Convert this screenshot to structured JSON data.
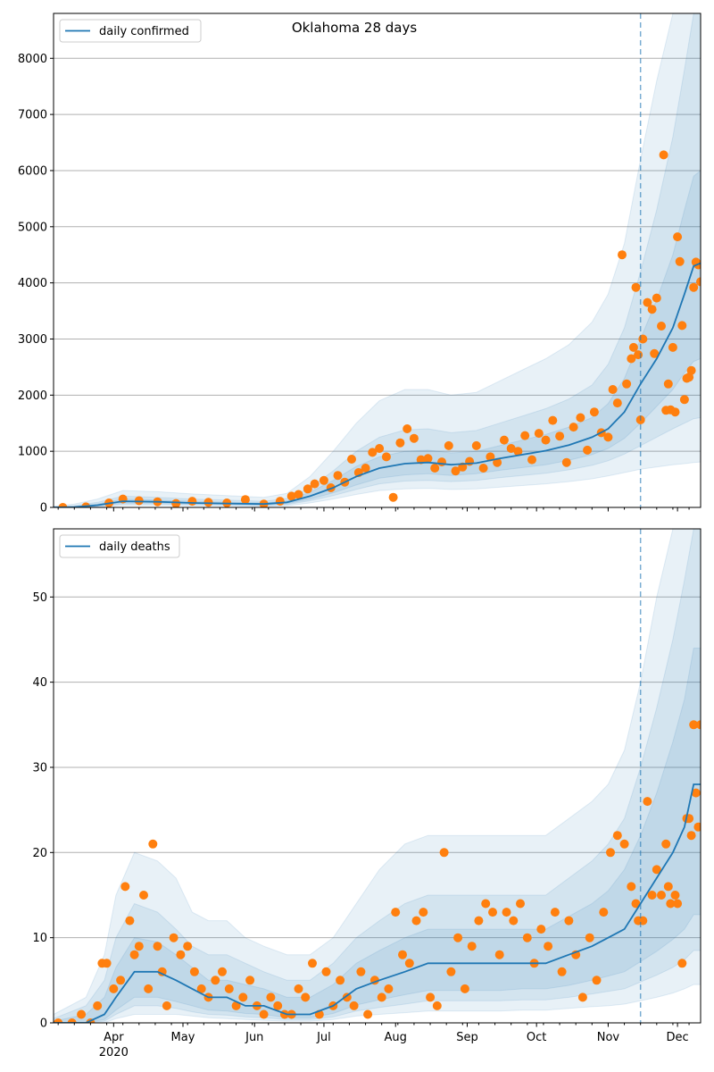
{
  "title": "Oklahoma 28 days",
  "colors": {
    "line": "#1f77b4",
    "points": "#ff7f0e",
    "band": "#1f77b4",
    "grid": "#b0b0b0"
  },
  "x_domain": [
    "2020-03-06",
    "2020-12-11"
  ],
  "forecast_start": "2020-11-15",
  "month_ticks": [
    {
      "date": "2020-04-01",
      "label": "Apr",
      "sublabel": "2020"
    },
    {
      "date": "2020-05-01",
      "label": "May",
      "sublabel": ""
    },
    {
      "date": "2020-06-01",
      "label": "Jun",
      "sublabel": ""
    },
    {
      "date": "2020-07-01",
      "label": "Jul",
      "sublabel": ""
    },
    {
      "date": "2020-08-01",
      "label": "Aug",
      "sublabel": ""
    },
    {
      "date": "2020-09-01",
      "label": "Sep",
      "sublabel": ""
    },
    {
      "date": "2020-10-01",
      "label": "Oct",
      "sublabel": ""
    },
    {
      "date": "2020-11-01",
      "label": "Nov",
      "sublabel": ""
    },
    {
      "date": "2020-12-01",
      "label": "Dec",
      "sublabel": ""
    }
  ],
  "chart_data": [
    {
      "type": "line",
      "legend": "daily confirmed",
      "legend_position": "top-left",
      "grid": "y",
      "ylim": [
        0,
        8800
      ],
      "yticks": [
        0,
        1000,
        2000,
        3000,
        4000,
        5000,
        6000,
        7000,
        8000
      ],
      "model": {
        "x": [
          "2020-03-06",
          "2020-03-15",
          "2020-03-25",
          "2020-04-05",
          "2020-04-20",
          "2020-05-05",
          "2020-05-20",
          "2020-06-05",
          "2020-06-15",
          "2020-06-25",
          "2020-07-05",
          "2020-07-15",
          "2020-07-25",
          "2020-08-05",
          "2020-08-15",
          "2020-08-25",
          "2020-09-05",
          "2020-09-15",
          "2020-09-25",
          "2020-10-05",
          "2020-10-15",
          "2020-10-25",
          "2020-11-01",
          "2020-11-08",
          "2020-11-15",
          "2020-11-22",
          "2020-11-29",
          "2020-12-04",
          "2020-12-08",
          "2020-12-11"
        ],
        "y": [
          0,
          5,
          40,
          110,
          100,
          80,
          70,
          60,
          90,
          200,
          350,
          550,
          700,
          780,
          800,
          760,
          790,
          870,
          940,
          1010,
          1110,
          1250,
          1400,
          1700,
          2200,
          2650,
          3200,
          3800,
          4300,
          4350
        ]
      },
      "bands": [
        {
          "lower": [
            0,
            0,
            10,
            40,
            40,
            30,
            30,
            20,
            30,
            80,
            150,
            230,
            300,
            330,
            340,
            320,
            330,
            360,
            390,
            420,
            460,
            510,
            560,
            620,
            680,
            720,
            760,
            780,
            800,
            810
          ],
          "upper": [
            20,
            60,
            150,
            300,
            280,
            240,
            210,
            180,
            250,
            550,
            1000,
            1500,
            1900,
            2100,
            2100,
            2000,
            2050,
            2250,
            2450,
            2650,
            2900,
            3300,
            3800,
            4700,
            6200,
            7600,
            8800,
            8800,
            8800,
            8800
          ]
        },
        {
          "lower": [
            0,
            0,
            20,
            60,
            60,
            50,
            45,
            35,
            50,
            120,
            210,
            320,
            420,
            470,
            480,
            460,
            480,
            530,
            570,
            610,
            670,
            750,
            830,
            950,
            1100,
            1250,
            1400,
            1500,
            1580,
            1600
          ],
          "upper": [
            10,
            30,
            90,
            200,
            180,
            150,
            130,
            110,
            160,
            350,
            650,
            1000,
            1250,
            1380,
            1400,
            1330,
            1370,
            1500,
            1630,
            1760,
            1930,
            2180,
            2550,
            3200,
            4200,
            5300,
            6600,
            7800,
            8800,
            8800
          ]
        },
        {
          "lower": [
            0,
            2,
            30,
            80,
            75,
            60,
            55,
            45,
            65,
            150,
            260,
            400,
            520,
            580,
            600,
            570,
            600,
            660,
            710,
            760,
            840,
            940,
            1050,
            1230,
            1500,
            1800,
            2100,
            2400,
            2600,
            2650
          ],
          "upper": [
            8,
            15,
            60,
            150,
            130,
            110,
            95,
            80,
            120,
            270,
            480,
            730,
            900,
            1000,
            1020,
            970,
            1000,
            1100,
            1200,
            1300,
            1430,
            1600,
            1850,
            2300,
            3000,
            3700,
            4500,
            5300,
            5900,
            6000
          ]
        }
      ],
      "observed": {
        "x": [
          "2020-03-10",
          "2020-03-20",
          "2020-03-30",
          "2020-04-05",
          "2020-04-12",
          "2020-04-20",
          "2020-04-28",
          "2020-05-05",
          "2020-05-12",
          "2020-05-20",
          "2020-05-28",
          "2020-06-05",
          "2020-06-12",
          "2020-06-17",
          "2020-06-20",
          "2020-06-24",
          "2020-06-27",
          "2020-07-01",
          "2020-07-04",
          "2020-07-07",
          "2020-07-10",
          "2020-07-13",
          "2020-07-16",
          "2020-07-19",
          "2020-07-22",
          "2020-07-25",
          "2020-07-28",
          "2020-07-31",
          "2020-08-03",
          "2020-08-06",
          "2020-08-09",
          "2020-08-12",
          "2020-08-15",
          "2020-08-18",
          "2020-08-21",
          "2020-08-24",
          "2020-08-27",
          "2020-08-30",
          "2020-09-02",
          "2020-09-05",
          "2020-09-08",
          "2020-09-11",
          "2020-09-14",
          "2020-09-17",
          "2020-09-20",
          "2020-09-23",
          "2020-09-26",
          "2020-09-29",
          "2020-10-02",
          "2020-10-05",
          "2020-10-08",
          "2020-10-11",
          "2020-10-14",
          "2020-10-17",
          "2020-10-20",
          "2020-10-23",
          "2020-10-26",
          "2020-10-29",
          "2020-11-01",
          "2020-11-03",
          "2020-11-05",
          "2020-11-07",
          "2020-11-09",
          "2020-11-11",
          "2020-11-12",
          "2020-11-13",
          "2020-11-14",
          "2020-11-15",
          "2020-11-16",
          "2020-11-18",
          "2020-11-20",
          "2020-11-21",
          "2020-11-22",
          "2020-11-24",
          "2020-11-25",
          "2020-11-26",
          "2020-11-27",
          "2020-11-28",
          "2020-11-29",
          "2020-11-30",
          "2020-12-01",
          "2020-12-02",
          "2020-12-03",
          "2020-12-04",
          "2020-12-05",
          "2020-12-06",
          "2020-12-07",
          "2020-12-08",
          "2020-12-09",
          "2020-12-10",
          "2020-12-11"
        ],
        "y": [
          0,
          10,
          80,
          150,
          120,
          100,
          70,
          110,
          90,
          80,
          140,
          60,
          110,
          200,
          230,
          330,
          420,
          480,
          350,
          570,
          450,
          860,
          620,
          700,
          980,
          1050,
          900,
          180,
          1150,
          1400,
          1230,
          850,
          870,
          700,
          810,
          1100,
          650,
          720,
          820,
          1100,
          700,
          900,
          800,
          1200,
          1050,
          1000,
          1280,
          850,
          1320,
          1200,
          1550,
          1270,
          800,
          1430,
          1600,
          1020,
          1700,
          1330,
          1250,
          2100,
          1860,
          4500,
          2200,
          2650,
          2850,
          3920,
          2720,
          1560,
          3000,
          3650,
          3530,
          2740,
          3730,
          3230,
          6280,
          1730,
          2200,
          1740,
          2850,
          1700,
          4820,
          4380,
          3240,
          1920,
          2300,
          2320,
          2440,
          3920,
          4370,
          4320,
          4020
        ]
      }
    },
    {
      "type": "line",
      "legend": "daily deaths",
      "legend_position": "top-left",
      "grid": "y",
      "ylim": [
        0,
        58
      ],
      "yticks": [
        0,
        10,
        20,
        30,
        40,
        50
      ],
      "model": {
        "x": [
          "2020-03-06",
          "2020-03-20",
          "2020-03-28",
          "2020-04-02",
          "2020-04-10",
          "2020-04-20",
          "2020-04-28",
          "2020-05-05",
          "2020-05-12",
          "2020-05-20",
          "2020-05-28",
          "2020-06-05",
          "2020-06-15",
          "2020-06-25",
          "2020-07-05",
          "2020-07-15",
          "2020-07-25",
          "2020-08-05",
          "2020-08-15",
          "2020-08-25",
          "2020-09-05",
          "2020-09-15",
          "2020-09-25",
          "2020-10-05",
          "2020-10-15",
          "2020-10-25",
          "2020-11-01",
          "2020-11-08",
          "2020-11-15",
          "2020-11-22",
          "2020-11-29",
          "2020-12-04",
          "2020-12-08",
          "2020-12-11"
        ],
        "y": [
          0,
          0,
          1,
          3,
          6,
          6,
          5,
          4,
          3,
          3,
          2,
          2,
          1,
          1,
          2,
          4,
          5,
          6,
          7,
          7,
          7,
          7,
          7,
          7,
          8,
          9,
          10,
          11,
          14,
          17,
          20,
          23,
          28,
          28
        ]
      },
      "bands": [
        {
          "lower": [
            0,
            0,
            0,
            0.5,
            1,
            1,
            1,
            0.8,
            0.6,
            0.5,
            0.4,
            0.3,
            0.2,
            0.2,
            0.4,
            0.8,
            1,
            1.2,
            1.4,
            1.4,
            1.4,
            1.4,
            1.5,
            1.5,
            1.7,
            1.9,
            2,
            2.2,
            2.6,
            3,
            3.5,
            4,
            4.5,
            4.5
          ],
          "upper": [
            1,
            3,
            8,
            15,
            20,
            19,
            17,
            13,
            12,
            12,
            10,
            9,
            8,
            8,
            10,
            14,
            18,
            21,
            22,
            22,
            22,
            22,
            22,
            22,
            24,
            26,
            28,
            32,
            40,
            50,
            58,
            58,
            58,
            58
          ]
        },
        {
          "lower": [
            0,
            0,
            0.2,
            1,
            2,
            2,
            1.7,
            1.3,
            1,
            0.9,
            0.7,
            0.6,
            0.4,
            0.4,
            0.7,
            1.4,
            1.8,
            2.2,
            2.6,
            2.6,
            2.6,
            2.6,
            2.7,
            2.7,
            3,
            3.4,
            3.7,
            4,
            4.8,
            5.6,
            6.5,
            7.4,
            8.5,
            8.5
          ],
          "upper": [
            0.5,
            2,
            5,
            10,
            14,
            13,
            11,
            9,
            8,
            8,
            7,
            6,
            5,
            5,
            7,
            10,
            12,
            14,
            15,
            15,
            15,
            15,
            15,
            15,
            17,
            19,
            21,
            24,
            30,
            37,
            45,
            52,
            58,
            58
          ]
        },
        {
          "lower": [
            0,
            0,
            0.4,
            1.5,
            3,
            3,
            2.5,
            2,
            1.5,
            1.4,
            1.1,
            1,
            0.6,
            0.6,
            1.1,
            2.1,
            2.7,
            3.3,
            3.8,
            3.8,
            3.8,
            3.8,
            4,
            4,
            4.4,
            5,
            5.5,
            6,
            7.2,
            8.4,
            9.8,
            11,
            12.7,
            12.7
          ],
          "upper": [
            0.2,
            1,
            3,
            6.5,
            10,
            9.5,
            8,
            6.5,
            5,
            5,
            4.5,
            4,
            3,
            3,
            4.5,
            7,
            8.5,
            10,
            11,
            11,
            11,
            11,
            11,
            11,
            12.5,
            14,
            15.5,
            18,
            22,
            27,
            33,
            38,
            44,
            44
          ]
        }
      ],
      "observed": {
        "x": [
          "2020-03-08",
          "2020-03-14",
          "2020-03-18",
          "2020-03-22",
          "2020-03-25",
          "2020-03-27",
          "2020-03-29",
          "2020-04-01",
          "2020-04-04",
          "2020-04-06",
          "2020-04-08",
          "2020-04-10",
          "2020-04-12",
          "2020-04-14",
          "2020-04-16",
          "2020-04-18",
          "2020-04-20",
          "2020-04-22",
          "2020-04-24",
          "2020-04-27",
          "2020-04-30",
          "2020-05-03",
          "2020-05-06",
          "2020-05-09",
          "2020-05-12",
          "2020-05-15",
          "2020-05-18",
          "2020-05-21",
          "2020-05-24",
          "2020-05-27",
          "2020-05-30",
          "2020-06-02",
          "2020-06-05",
          "2020-06-08",
          "2020-06-11",
          "2020-06-14",
          "2020-06-17",
          "2020-06-20",
          "2020-06-23",
          "2020-06-26",
          "2020-06-29",
          "2020-07-02",
          "2020-07-05",
          "2020-07-08",
          "2020-07-11",
          "2020-07-14",
          "2020-07-17",
          "2020-07-20",
          "2020-07-23",
          "2020-07-26",
          "2020-07-29",
          "2020-08-01",
          "2020-08-04",
          "2020-08-07",
          "2020-08-10",
          "2020-08-13",
          "2020-08-16",
          "2020-08-19",
          "2020-08-22",
          "2020-08-25",
          "2020-08-28",
          "2020-08-31",
          "2020-09-03",
          "2020-09-06",
          "2020-09-09",
          "2020-09-12",
          "2020-09-15",
          "2020-09-18",
          "2020-09-21",
          "2020-09-24",
          "2020-09-27",
          "2020-09-30",
          "2020-10-03",
          "2020-10-06",
          "2020-10-09",
          "2020-10-12",
          "2020-10-15",
          "2020-10-18",
          "2020-10-21",
          "2020-10-24",
          "2020-10-27",
          "2020-10-30",
          "2020-11-02",
          "2020-11-05",
          "2020-11-08",
          "2020-11-11",
          "2020-11-13",
          "2020-11-14",
          "2020-11-16",
          "2020-11-18",
          "2020-11-20",
          "2020-11-22",
          "2020-11-24",
          "2020-11-26",
          "2020-11-27",
          "2020-11-28",
          "2020-11-30",
          "2020-12-01",
          "2020-12-03",
          "2020-12-05",
          "2020-12-06",
          "2020-12-07",
          "2020-12-08",
          "2020-12-09",
          "2020-12-10",
          "2020-12-11"
        ],
        "y": [
          0,
          0,
          1,
          0,
          2,
          7,
          7,
          4,
          5,
          16,
          12,
          8,
          9,
          15,
          4,
          21,
          9,
          6,
          2,
          10,
          8,
          9,
          6,
          4,
          3,
          5,
          6,
          4,
          2,
          3,
          5,
          2,
          1,
          3,
          2,
          1,
          1,
          4,
          3,
          7,
          1,
          6,
          2,
          5,
          3,
          2,
          6,
          1,
          5,
          3,
          4,
          13,
          8,
          7,
          12,
          13,
          3,
          2,
          20,
          6,
          10,
          4,
          9,
          12,
          14,
          13,
          8,
          13,
          12,
          14,
          10,
          7,
          11,
          9,
          13,
          6,
          12,
          8,
          3,
          10,
          5,
          13,
          20,
          22,
          21,
          16,
          14,
          12,
          12,
          26,
          15,
          18,
          15,
          21,
          16,
          14,
          15,
          14,
          7,
          24,
          24,
          22,
          35,
          27,
          23,
          35
        ]
      }
    }
  ]
}
